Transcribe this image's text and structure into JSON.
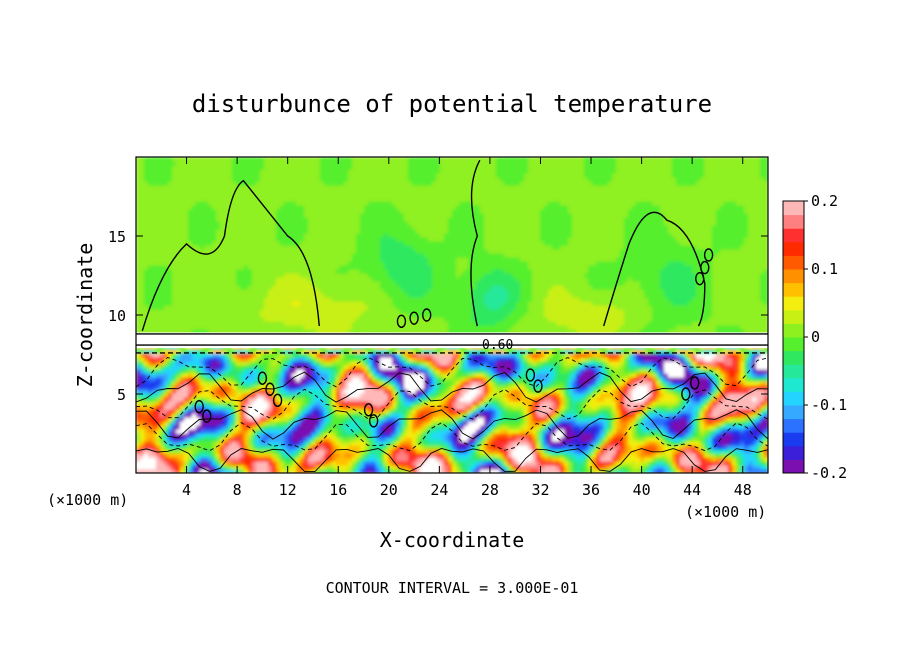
{
  "chart_data": {
    "type": "heatmap",
    "title": "disturbunce of potential temperature",
    "xlabel": "X-coordinate",
    "ylabel": "Z-coordinate",
    "x_unit_note": "(×1000 m)",
    "y_unit_note": "(×1000 m)",
    "xlim": [
      0,
      50
    ],
    "ylim": [
      0,
      20
    ],
    "x_ticks": [
      "4",
      "8",
      "12",
      "16",
      "20",
      "24",
      "28",
      "32",
      "36",
      "40",
      "44",
      "48"
    ],
    "y_ticks": [
      "5",
      "10",
      "15"
    ],
    "colorbar": {
      "range": [
        -0.2,
        0.2
      ],
      "tick_labels": [
        "0.2",
        "0.1",
        "0",
        "-0.1",
        "-0.2"
      ],
      "colors": [
        "#7b0fb0",
        "#3b1fd9",
        "#1a3cf0",
        "#2a72ff",
        "#35a8ff",
        "#22d4ff",
        "#1fe8d0",
        "#25e89a",
        "#2fe860",
        "#55ef2e",
        "#8ff020",
        "#c8f014",
        "#f3ee10",
        "#ffc000",
        "#ff9000",
        "#ff5a00",
        "#ff2a00",
        "#ff3030",
        "#ff8080",
        "#ffb8b8"
      ]
    },
    "contour_label": "0.60",
    "footnote": "CONTOUR INTERVAL = 3.000E-01"
  }
}
